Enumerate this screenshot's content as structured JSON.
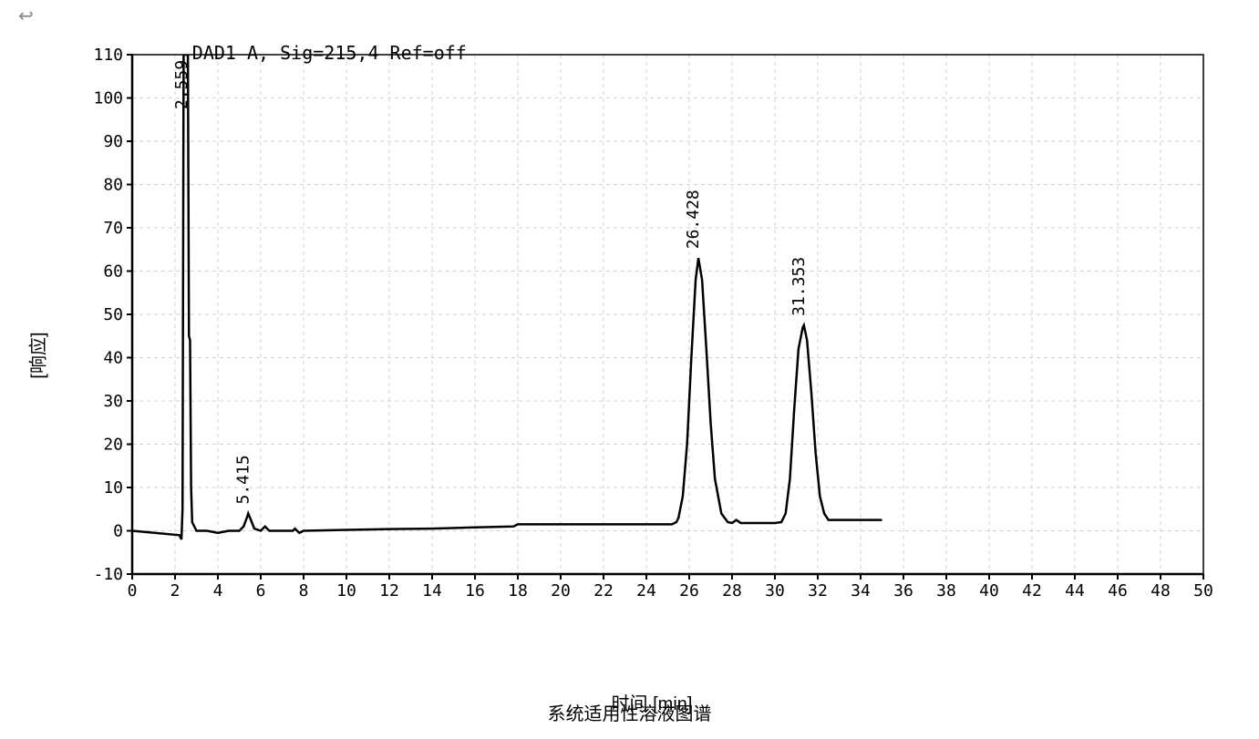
{
  "back_arrow": "↩",
  "chart": {
    "type": "line",
    "signal_label": "DAD1 A, Sig=215,4 Ref=off",
    "xlabel": "时间 [min]",
    "ylabel": "[响应]",
    "xlim": [
      0,
      50
    ],
    "ylim": [
      -10,
      110
    ],
    "xticks": [
      0,
      2,
      4,
      6,
      8,
      10,
      12,
      14,
      16,
      18,
      20,
      22,
      24,
      26,
      28,
      30,
      32,
      34,
      36,
      38,
      40,
      42,
      44,
      46,
      48,
      50
    ],
    "yticks": [
      -10,
      0,
      10,
      20,
      30,
      40,
      50,
      60,
      70,
      80,
      90,
      100,
      110
    ],
    "background_color": "#ffffff",
    "grid_color": "#d0d0d0",
    "axis_color": "#000000",
    "line_color": "#000000",
    "line_width": 2.5,
    "grid_width": 1,
    "tick_length": 6,
    "label_fontsize": 20,
    "tick_fontsize": 18,
    "peak_label_fontsize": 18,
    "peaks": [
      {
        "rt": 2.559,
        "label": "2.559"
      },
      {
        "rt": 5.415,
        "label": "5.415"
      },
      {
        "rt": 26.428,
        "label": "26.428"
      },
      {
        "rt": 31.353,
        "label": "31.353"
      }
    ],
    "trace": [
      {
        "x": 0.0,
        "y": 0
      },
      {
        "x": 2.2,
        "y": -1
      },
      {
        "x": 2.3,
        "y": -2
      },
      {
        "x": 2.35,
        "y": 5
      },
      {
        "x": 2.4,
        "y": 110
      },
      {
        "x": 2.45,
        "y": 110
      },
      {
        "x": 2.5,
        "y": 110
      },
      {
        "x": 2.55,
        "y": 110
      },
      {
        "x": 2.6,
        "y": 110
      },
      {
        "x": 2.65,
        "y": 45
      },
      {
        "x": 2.7,
        "y": 44
      },
      {
        "x": 2.75,
        "y": 10
      },
      {
        "x": 2.8,
        "y": 2
      },
      {
        "x": 3.0,
        "y": 0
      },
      {
        "x": 3.5,
        "y": 0
      },
      {
        "x": 4.0,
        "y": -0.5
      },
      {
        "x": 4.5,
        "y": 0
      },
      {
        "x": 5.0,
        "y": 0
      },
      {
        "x": 5.2,
        "y": 1
      },
      {
        "x": 5.35,
        "y": 3
      },
      {
        "x": 5.415,
        "y": 4
      },
      {
        "x": 5.5,
        "y": 3
      },
      {
        "x": 5.7,
        "y": 0.5
      },
      {
        "x": 6.0,
        "y": 0
      },
      {
        "x": 6.2,
        "y": 1
      },
      {
        "x": 6.4,
        "y": 0
      },
      {
        "x": 7.0,
        "y": 0
      },
      {
        "x": 7.5,
        "y": 0
      },
      {
        "x": 7.6,
        "y": 0.5
      },
      {
        "x": 7.8,
        "y": -0.5
      },
      {
        "x": 8.0,
        "y": 0
      },
      {
        "x": 10,
        "y": 0.2
      },
      {
        "x": 12,
        "y": 0.4
      },
      {
        "x": 14,
        "y": 0.5
      },
      {
        "x": 16,
        "y": 0.8
      },
      {
        "x": 17.8,
        "y": 1
      },
      {
        "x": 18,
        "y": 1.5
      },
      {
        "x": 20,
        "y": 1.5
      },
      {
        "x": 22,
        "y": 1.5
      },
      {
        "x": 24,
        "y": 1.5
      },
      {
        "x": 25.2,
        "y": 1.5
      },
      {
        "x": 25.4,
        "y": 2
      },
      {
        "x": 25.5,
        "y": 3
      },
      {
        "x": 25.7,
        "y": 8
      },
      {
        "x": 25.9,
        "y": 20
      },
      {
        "x": 26.1,
        "y": 40
      },
      {
        "x": 26.3,
        "y": 58
      },
      {
        "x": 26.428,
        "y": 63
      },
      {
        "x": 26.6,
        "y": 58
      },
      {
        "x": 26.8,
        "y": 42
      },
      {
        "x": 27.0,
        "y": 25
      },
      {
        "x": 27.2,
        "y": 12
      },
      {
        "x": 27.5,
        "y": 4
      },
      {
        "x": 27.8,
        "y": 2
      },
      {
        "x": 28.0,
        "y": 1.8
      },
      {
        "x": 28.2,
        "y": 2.5
      },
      {
        "x": 28.4,
        "y": 1.8
      },
      {
        "x": 29,
        "y": 1.8
      },
      {
        "x": 30,
        "y": 1.8
      },
      {
        "x": 30.3,
        "y": 2
      },
      {
        "x": 30.5,
        "y": 4
      },
      {
        "x": 30.7,
        "y": 12
      },
      {
        "x": 30.9,
        "y": 28
      },
      {
        "x": 31.1,
        "y": 42
      },
      {
        "x": 31.3,
        "y": 47
      },
      {
        "x": 31.353,
        "y": 47.5
      },
      {
        "x": 31.5,
        "y": 44
      },
      {
        "x": 31.7,
        "y": 32
      },
      {
        "x": 31.9,
        "y": 18
      },
      {
        "x": 32.1,
        "y": 8
      },
      {
        "x": 32.3,
        "y": 4
      },
      {
        "x": 32.5,
        "y": 2.5
      },
      {
        "x": 33,
        "y": 2.5
      },
      {
        "x": 34,
        "y": 2.5
      },
      {
        "x": 35,
        "y": 2.5
      }
    ]
  },
  "caption": "系统适用性溶液图谱"
}
